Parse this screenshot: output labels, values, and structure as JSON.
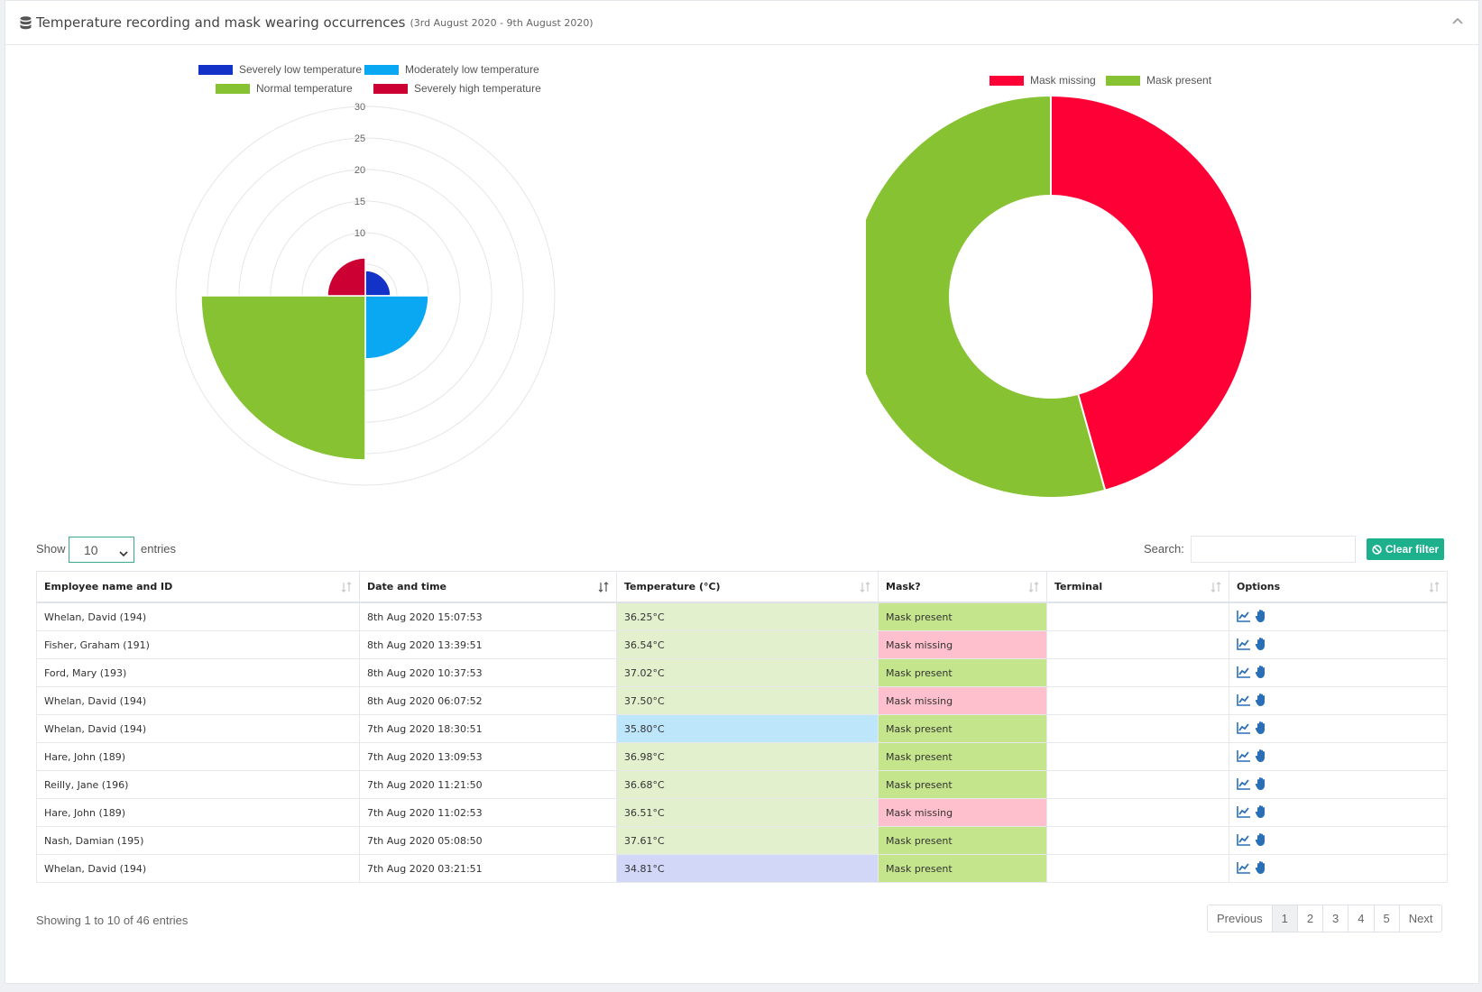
{
  "header": {
    "title": "Temperature recording and mask wearing occurrences",
    "subtitle": "(3rd August 2020 - 9th August 2020)"
  },
  "chart_data": [
    {
      "type": "polar-area",
      "legend": [
        "Severely low temperature",
        "Moderately low temperature",
        "Normal temperature",
        "Severely high temperature"
      ],
      "values": [
        4,
        10,
        26,
        6
      ],
      "colors": [
        "#1232c8",
        "#0aa8f2",
        "#86c232",
        "#cc0033"
      ],
      "rlim": [
        0,
        30
      ],
      "ticks": [
        "10",
        "15",
        "20",
        "25",
        "30"
      ]
    },
    {
      "type": "pie",
      "legend": [
        "Mask missing",
        "Mask present"
      ],
      "values": [
        21,
        25
      ],
      "colors": [
        "#ff0036",
        "#86c232"
      ],
      "donut": true
    }
  ],
  "controls": {
    "show_label": "Show",
    "page_size": "10",
    "entries_label": "entries",
    "search_label": "Search:",
    "search_value": "",
    "clear_filter": "Clear filter"
  },
  "table": {
    "columns": [
      "Employee name and ID",
      "Date and time",
      "Temperature (°C)",
      "Mask?",
      "Terminal",
      "Options"
    ],
    "rows": [
      {
        "employee": "Whelan, David (194)",
        "datetime": "8th Aug 2020 15:07:53",
        "temperature": "36.25°C",
        "temp_class": "normal",
        "mask": "Mask present",
        "terminal": ""
      },
      {
        "employee": "Fisher, Graham (191)",
        "datetime": "8th Aug 2020 13:39:51",
        "temperature": "36.54°C",
        "temp_class": "normal",
        "mask": "Mask missing",
        "terminal": ""
      },
      {
        "employee": "Ford, Mary (193)",
        "datetime": "8th Aug 2020 10:37:53",
        "temperature": "37.02°C",
        "temp_class": "normal",
        "mask": "Mask present",
        "terminal": ""
      },
      {
        "employee": "Whelan, David (194)",
        "datetime": "8th Aug 2020 06:07:52",
        "temperature": "37.50°C",
        "temp_class": "normal",
        "mask": "Mask missing",
        "terminal": ""
      },
      {
        "employee": "Whelan, David (194)",
        "datetime": "7th Aug 2020 18:30:51",
        "temperature": "35.80°C",
        "temp_class": "modlow",
        "mask": "Mask present",
        "terminal": ""
      },
      {
        "employee": "Hare, John (189)",
        "datetime": "7th Aug 2020 13:09:53",
        "temperature": "36.98°C",
        "temp_class": "normal",
        "mask": "Mask present",
        "terminal": ""
      },
      {
        "employee": "Reilly, Jane (196)",
        "datetime": "7th Aug 2020 11:21:50",
        "temperature": "36.68°C",
        "temp_class": "normal",
        "mask": "Mask present",
        "terminal": ""
      },
      {
        "employee": "Hare, John (189)",
        "datetime": "7th Aug 2020 11:02:53",
        "temperature": "36.51°C",
        "temp_class": "normal",
        "mask": "Mask missing",
        "terminal": ""
      },
      {
        "employee": "Nash, Damian (195)",
        "datetime": "7th Aug 2020 05:08:50",
        "temperature": "37.61°C",
        "temp_class": "normal",
        "mask": "Mask present",
        "terminal": ""
      },
      {
        "employee": "Whelan, David (194)",
        "datetime": "7th Aug 2020 03:21:51",
        "temperature": "34.81°C",
        "temp_class": "sevlow",
        "mask": "Mask present",
        "terminal": ""
      }
    ]
  },
  "footer": {
    "info": "Showing 1 to 10 of 46 entries",
    "pages": [
      "Previous",
      "1",
      "2",
      "3",
      "4",
      "5",
      "Next"
    ],
    "active_page": "1"
  },
  "icons": {
    "options": [
      "chart-line-icon",
      "hand-icon"
    ],
    "header": "database-icon",
    "collapse": "chevron-up-icon"
  }
}
